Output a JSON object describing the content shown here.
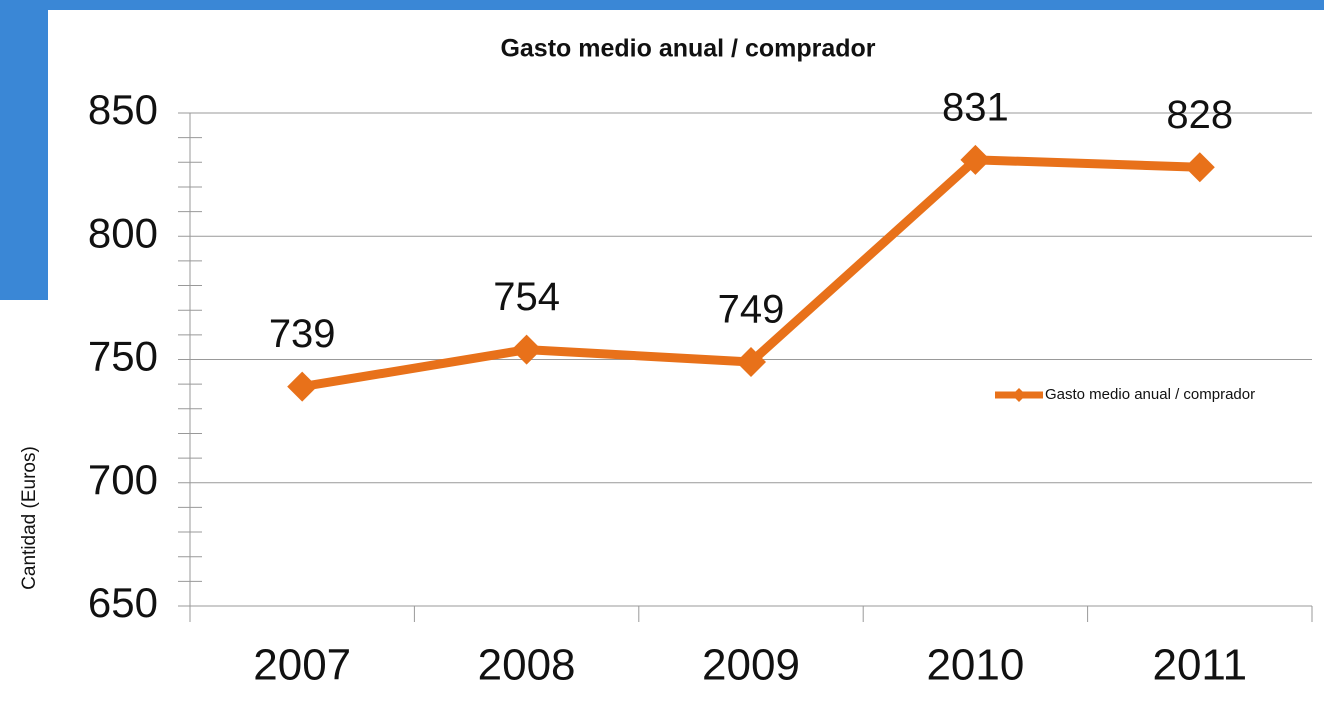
{
  "chart_data": {
    "type": "line",
    "title": "Gasto medio anual / comprador",
    "y_label": "Cantidad (Euros)",
    "categories": [
      "2007",
      "2008",
      "2009",
      "2010",
      "2011"
    ],
    "series": [
      {
        "name": "Gasto medio anual / comprador",
        "color": "#e8711a",
        "values": [
          739,
          754,
          749,
          831,
          828
        ]
      }
    ],
    "ylim": [
      650,
      850
    ],
    "yticks": [
      650,
      700,
      750,
      800,
      850
    ],
    "yminorticks": [
      660,
      670,
      680,
      690,
      710,
      720,
      730,
      740,
      760,
      770,
      780,
      790,
      810,
      820,
      830,
      840
    ],
    "grid": true,
    "data_labels": true,
    "legend": "right"
  }
}
